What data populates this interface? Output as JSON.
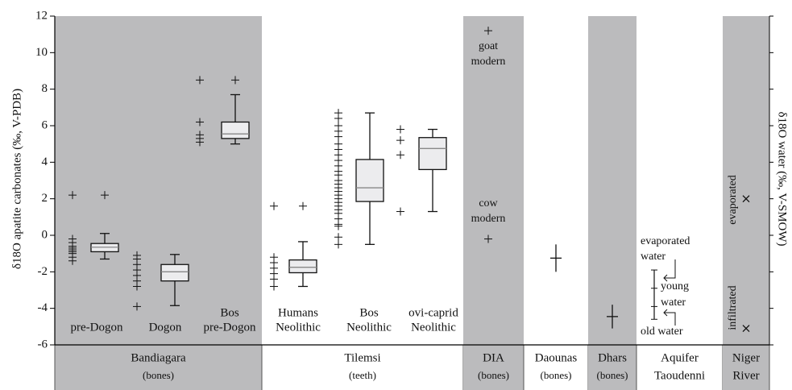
{
  "chart_data": {
    "type": "box",
    "y_label": "δ18O apatite carbonates (‰, V-PDB)",
    "y2_label": "δ18O water (‰, V-SMOW)",
    "ylim": [
      -6,
      12
    ],
    "yticks": [
      -6,
      -4,
      -2,
      0,
      2,
      4,
      6,
      8,
      10,
      12
    ],
    "panel_color": "#bbbbbd",
    "box_color": "#ececee",
    "panels": [
      {
        "name": "Bandiagara",
        "sub": "(bones)"
      },
      {
        "name": "Tilemsi",
        "sub": "(teeth)"
      },
      {
        "name": "DIA",
        "sub": "(bones)"
      },
      {
        "name": "Daounas",
        "sub": "(bones)"
      },
      {
        "name": "Dhars",
        "sub": "(bones)"
      },
      {
        "name": "Aquifer",
        "sub": "Taoudenni"
      },
      {
        "name": "Niger",
        "sub": "River"
      }
    ],
    "boxes": [
      {
        "label": [
          "pre-Dogon"
        ],
        "points": [
          2.2,
          -0.2,
          -0.4,
          -0.6,
          -0.7,
          -0.8,
          -0.9,
          -1.0,
          -1.2,
          -1.4
        ],
        "low": -1.3,
        "q1": -0.9,
        "median": -0.65,
        "q3": -0.45,
        "high": 0.1,
        "outliers": [
          2.2
        ]
      },
      {
        "label": [
          "Dogon"
        ],
        "points": [
          -1.1,
          -1.3,
          -1.6,
          -1.9,
          -2.2,
          -2.5,
          -2.8,
          -3.9
        ],
        "low": -3.85,
        "q1": -2.5,
        "median": -2.0,
        "q3": -1.6,
        "high": -1.05,
        "outliers": []
      },
      {
        "label": [
          "Bos",
          "pre-Dogon"
        ],
        "points": [
          8.5,
          6.2,
          5.5,
          5.3,
          5.1
        ],
        "low": 5.0,
        "q1": 5.3,
        "median": 5.55,
        "q3": 6.2,
        "high": 7.7,
        "outliers": [
          8.5
        ]
      },
      {
        "label": [
          "Humans",
          "Neolithic"
        ],
        "points": [
          1.6,
          -1.2,
          -1.5,
          -1.8,
          -2.1,
          -2.4,
          -2.8
        ],
        "low": -2.8,
        "q1": -2.05,
        "median": -1.75,
        "q3": -1.35,
        "high": -0.35,
        "outliers": [
          1.6
        ]
      },
      {
        "label": [
          "Bos",
          "Neolithic"
        ],
        "points": [
          6.7,
          6.4,
          6.0,
          5.7,
          5.4,
          5.0,
          4.7,
          4.4,
          4.1,
          3.8,
          3.5,
          3.3,
          3.0,
          2.8,
          2.6,
          2.4,
          2.2,
          2.0,
          1.8,
          1.6,
          1.4,
          1.2,
          0.9,
          0.6,
          0.5,
          -0.1,
          -0.5
        ],
        "low": -0.5,
        "q1": 1.85,
        "median": 2.6,
        "q3": 4.15,
        "high": 6.7,
        "outliers": []
      },
      {
        "label": [
          "ovi-caprid",
          "Neolithic"
        ],
        "points": [
          5.8,
          5.2,
          4.4,
          1.3
        ],
        "low": 1.3,
        "q1": 3.6,
        "median": 4.75,
        "q3": 5.35,
        "high": 5.8,
        "outliers": []
      }
    ],
    "dia": [
      {
        "label": [
          "goat",
          "modern"
        ],
        "value": 11.2
      },
      {
        "label": [
          "cow",
          "modern"
        ],
        "value": -0.2
      }
    ],
    "error_bars": [
      {
        "value": -1.25,
        "error": 0.75
      },
      {
        "value": -4.45,
        "error": 0.65
      }
    ],
    "aquifer": {
      "low": -4.6,
      "high": -1.9,
      "ticks": [
        -2.9,
        -3.9
      ],
      "annotations": [
        "evaporated",
        "water",
        "young",
        "water",
        "old water"
      ]
    },
    "niger": [
      {
        "label": "evaporated",
        "value": 2.0
      },
      {
        "label": "infiltrated",
        "value": -5.1
      }
    ]
  }
}
